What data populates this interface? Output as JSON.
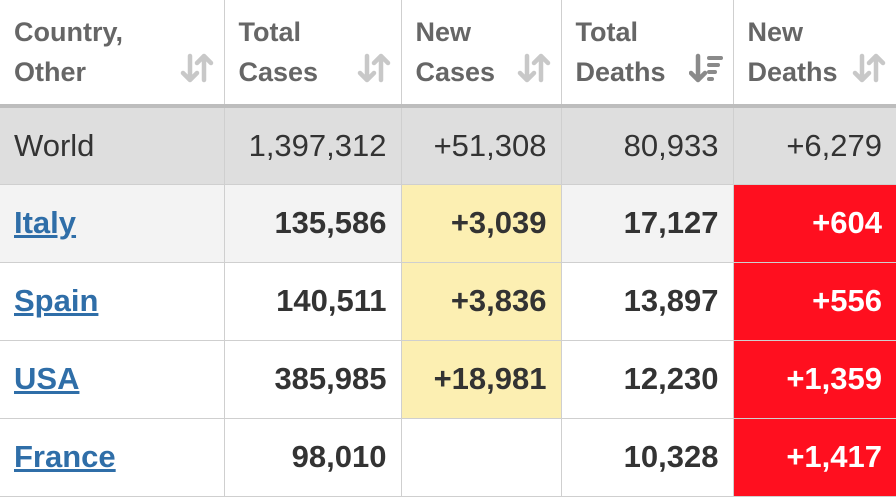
{
  "headers": {
    "country": "Country,\nOther",
    "total_cases": "Total\nCases",
    "new_cases": "New\nCases",
    "total_deaths": "Total\nDeaths",
    "new_deaths": "New\nDeaths"
  },
  "sort": {
    "active_column": "total_deaths",
    "direction": "descending"
  },
  "colors": {
    "new_cases_highlight": "#fcefb2",
    "new_deaths_highlight": "#ff0f1f",
    "link": "#2f6ea8",
    "world_row": "#dedede"
  },
  "world": {
    "country": "World",
    "total_cases": "1,397,312",
    "new_cases": "+51,308",
    "total_deaths": "80,933",
    "new_deaths": "+6,279"
  },
  "rows": [
    {
      "country": "Italy",
      "total_cases": "135,586",
      "new_cases": "+3,039",
      "total_deaths": "17,127",
      "new_deaths": "+604"
    },
    {
      "country": "Spain",
      "total_cases": "140,511",
      "new_cases": "+3,836",
      "total_deaths": "13,897",
      "new_deaths": "+556"
    },
    {
      "country": "USA",
      "total_cases": "385,985",
      "new_cases": "+18,981",
      "total_deaths": "12,230",
      "new_deaths": "+1,359"
    },
    {
      "country": "France",
      "total_cases": "98,010",
      "new_cases": "",
      "total_deaths": "10,328",
      "new_deaths": "+1,417"
    }
  ]
}
